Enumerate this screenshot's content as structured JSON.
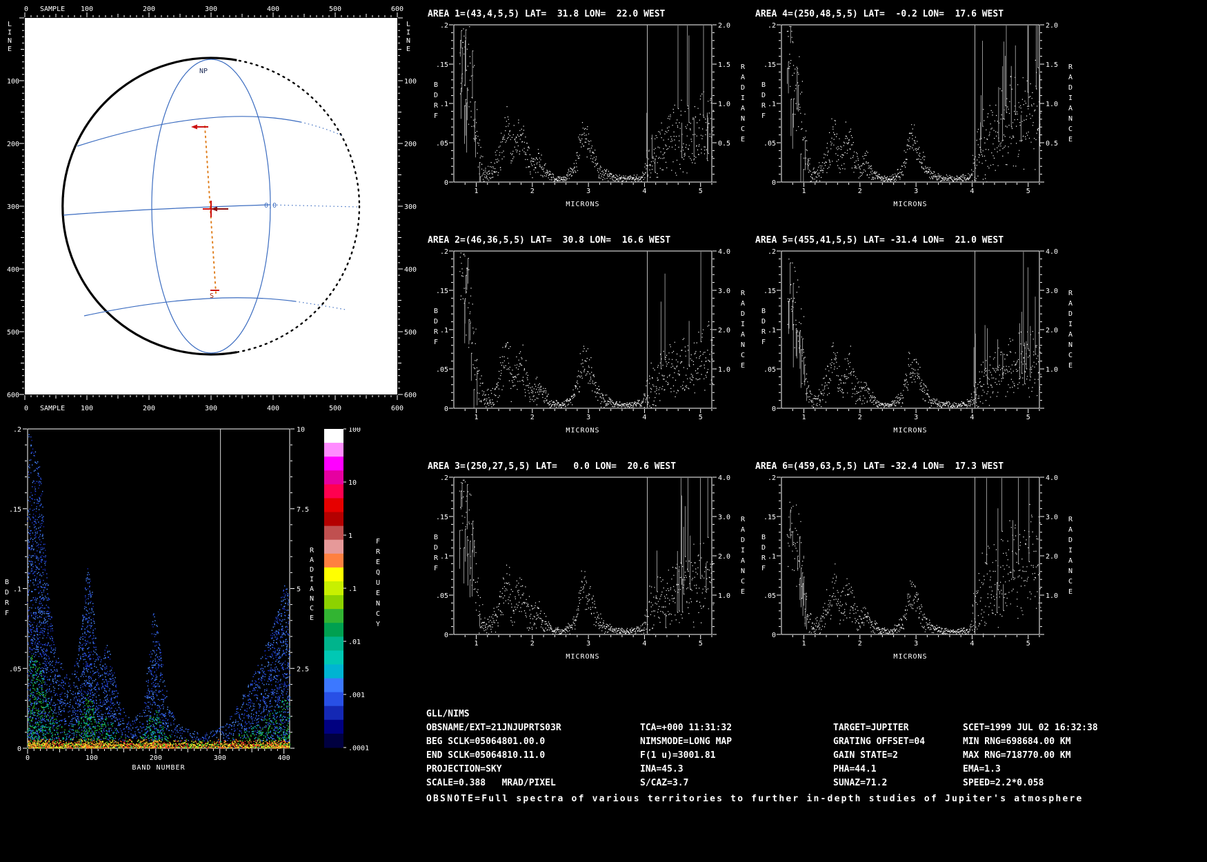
{
  "window": {
    "title": "GLL/NIMS observation display",
    "background": "#000000"
  },
  "skymap": {
    "x_axis": {
      "title": "SAMPLE",
      "min": 0,
      "max": 600,
      "majors": [
        0,
        100,
        200,
        300,
        400,
        500,
        600
      ]
    },
    "y_axis": {
      "title": "LINE",
      "min": 0,
      "max": 600,
      "majors": [
        100,
        200,
        300,
        400,
        500,
        600
      ]
    },
    "labels": {
      "north_pole": "NP",
      "origin": "0,0",
      "south_point": "S"
    },
    "colors": {
      "background": "#ffffff",
      "limb": "#000000",
      "grid": "#3b6cc0",
      "track": "#e08020",
      "marker": "#cc1111",
      "marker_dark": "#8b1010",
      "tick": "#ffffff"
    }
  },
  "chart_data": [
    {
      "name": "bdrf-band-density",
      "type": "heatmap",
      "xlabel": "BAND NUMBER",
      "ylabel": "BDRF",
      "ylabel_right": "RADIANCE",
      "x_range": [
        0,
        409
      ],
      "x_ticks": [
        0,
        100,
        200,
        300,
        400
      ],
      "y_range": [
        0,
        0.2
      ],
      "y_ticks": [
        "0",
        ".05",
        ".1",
        ".15",
        ".2"
      ],
      "radiance_range": [
        0,
        10
      ],
      "radiance_ticks": [
        "2.5",
        "5",
        "7.5",
        "10"
      ],
      "marker_line_band": 301,
      "envelope": [
        [
          0,
          0.2,
          1.3
        ],
        [
          6,
          0.195,
          1.3
        ],
        [
          12,
          0.185,
          1.2
        ],
        [
          20,
          0.175,
          1.1
        ],
        [
          28,
          0.12,
          0.9
        ],
        [
          36,
          0.085,
          0.8
        ],
        [
          45,
          0.06,
          0.7
        ],
        [
          55,
          0.05,
          0.6
        ],
        [
          65,
          0.045,
          0.6
        ],
        [
          75,
          0.055,
          0.7
        ],
        [
          85,
          0.08,
          0.9
        ],
        [
          93,
          0.115,
          1.1
        ],
        [
          100,
          0.1,
          1.0
        ],
        [
          108,
          0.06,
          0.8
        ],
        [
          116,
          0.055,
          0.8
        ],
        [
          124,
          0.068,
          0.9
        ],
        [
          132,
          0.055,
          0.8
        ],
        [
          140,
          0.035,
          0.6
        ],
        [
          152,
          0.022,
          0.5
        ],
        [
          165,
          0.018,
          0.5
        ],
        [
          178,
          0.025,
          0.6
        ],
        [
          188,
          0.055,
          0.8
        ],
        [
          196,
          0.085,
          1.0
        ],
        [
          204,
          0.075,
          0.9
        ],
        [
          212,
          0.045,
          0.7
        ],
        [
          222,
          0.025,
          0.5
        ],
        [
          235,
          0.015,
          0.45
        ],
        [
          250,
          0.012,
          0.4
        ],
        [
          265,
          0.01,
          0.4
        ],
        [
          280,
          0.01,
          0.4
        ],
        [
          295,
          0.012,
          0.45
        ],
        [
          308,
          0.016,
          0.5
        ],
        [
          320,
          0.022,
          0.55
        ],
        [
          332,
          0.03,
          0.6
        ],
        [
          344,
          0.04,
          0.65
        ],
        [
          356,
          0.05,
          0.7
        ],
        [
          368,
          0.06,
          0.75
        ],
        [
          380,
          0.075,
          0.85
        ],
        [
          392,
          0.09,
          0.95
        ],
        [
          400,
          0.105,
          1.0
        ],
        [
          408,
          0.095,
          0.9
        ]
      ],
      "legend": {
        "title": "FREQUENCY",
        "tick_labels": [
          "100",
          "10",
          "1",
          ".1",
          ".01",
          ".001",
          ".0001"
        ],
        "colors": [
          "#ffffff",
          "#ff8cff",
          "#ff00ff",
          "#e600a0",
          "#ff0050",
          "#e60000",
          "#b40000",
          "#c05050",
          "#e69999",
          "#ff8040",
          "#ffff00",
          "#c8f000",
          "#8cd200",
          "#32b432",
          "#00a050",
          "#00b48c",
          "#00c8b4",
          "#00b4d2",
          "#3c78ff",
          "#2850e6",
          "#1428b4",
          "#000080",
          "#000040"
        ],
        "dot_palette": {
          "warm": [
            "#ffff30",
            "#ff8020",
            "#ff3030",
            "#30c830"
          ],
          "mid": [
            "#30c830",
            "#00b48c",
            "#3c78ff",
            "#2850e6"
          ],
          "cool": [
            "#3c78ff",
            "#2850e6",
            "#1428b4",
            "#5090ff"
          ]
        }
      }
    },
    {
      "name": "area-spectra",
      "type": "scatter",
      "xlabel": "MICRONS",
      "ylabel": "BDRF",
      "ylabel_right": "RADIANCE",
      "x_range": [
        0.6,
        5.2
      ],
      "x_ticks": [
        1,
        2,
        3,
        4,
        5
      ],
      "bdrf_range": [
        0,
        0.2
      ],
      "bdrf_ticks": [
        "0",
        ".05",
        ".1",
        ".15",
        ".2"
      ],
      "grating_line_micron": 4.05,
      "envelope_bdrf_vs_micron": [
        [
          0.7,
          0.15,
          0.045
        ],
        [
          0.76,
          0.165,
          0.04
        ],
        [
          0.82,
          0.13,
          0.055
        ],
        [
          0.88,
          0.12,
          0.045
        ],
        [
          0.94,
          0.095,
          0.05
        ],
        [
          1.0,
          0.06,
          0.04
        ],
        [
          1.06,
          0.025,
          0.02
        ],
        [
          1.15,
          0.01,
          0.008
        ],
        [
          1.3,
          0.015,
          0.012
        ],
        [
          1.45,
          0.045,
          0.025
        ],
        [
          1.55,
          0.075,
          0.025
        ],
        [
          1.62,
          0.035,
          0.02
        ],
        [
          1.72,
          0.05,
          0.025
        ],
        [
          1.8,
          0.06,
          0.025
        ],
        [
          1.9,
          0.03,
          0.018
        ],
        [
          2.0,
          0.018,
          0.012
        ],
        [
          2.1,
          0.028,
          0.015
        ],
        [
          2.2,
          0.015,
          0.01
        ],
        [
          2.35,
          0.005,
          0.004
        ],
        [
          2.55,
          0.004,
          0.003
        ],
        [
          2.75,
          0.015,
          0.01
        ],
        [
          2.88,
          0.06,
          0.018
        ],
        [
          2.98,
          0.055,
          0.018
        ],
        [
          3.1,
          0.028,
          0.015
        ],
        [
          3.25,
          0.01,
          0.007
        ],
        [
          3.45,
          0.005,
          0.004
        ],
        [
          3.7,
          0.004,
          0.003
        ],
        [
          3.95,
          0.006,
          0.005
        ],
        [
          4.1,
          0.03,
          0.028
        ],
        [
          4.25,
          0.04,
          0.03
        ],
        [
          4.4,
          0.05,
          0.032
        ],
        [
          4.55,
          0.055,
          0.035
        ],
        [
          4.7,
          0.06,
          0.036
        ],
        [
          4.85,
          0.065,
          0.038
        ],
        [
          5.0,
          0.07,
          0.04
        ],
        [
          5.15,
          0.072,
          0.042
        ],
        [
          5.22,
          0.068,
          0.04
        ]
      ],
      "areas": [
        {
          "title": "AREA 1=(43,4,5,5) LAT=  31.8 LON=  22.0 WEST",
          "radiance_max": 2.0,
          "radiance_ticks": [
            "0.5",
            "1.0",
            "1.5",
            "2.0"
          ],
          "head_scale": 1.05,
          "mid_scale": 1.0,
          "tail_scale": 0.95,
          "seed": 101
        },
        {
          "title": "AREA 4=(250,48,5,5) LAT=  -0.2 LON=  17.6 WEST",
          "radiance_max": 2.0,
          "radiance_ticks": [
            "0.5",
            "1.0",
            "1.5",
            "2.0"
          ],
          "head_scale": 1.0,
          "mid_scale": 0.9,
          "tail_scale": 1.25,
          "seed": 104
        },
        {
          "title": "AREA 2=(46,36,5,5) LAT=  30.8 LON=  16.6 WEST",
          "radiance_max": 4.0,
          "radiance_ticks": [
            "1.0",
            "2.0",
            "3.0",
            "4.0"
          ],
          "head_scale": 1.05,
          "mid_scale": 1.0,
          "tail_scale": 0.85,
          "seed": 102
        },
        {
          "title": "AREA 5=(455,41,5,5) LAT= -31.4 LON=  21.0 WEST",
          "radiance_max": 4.0,
          "radiance_ticks": [
            "1.0",
            "2.0",
            "3.0",
            "4.0"
          ],
          "head_scale": 0.95,
          "mid_scale": 0.9,
          "tail_scale": 0.85,
          "seed": 105
        },
        {
          "title": "AREA 3=(250,27,5,5) LAT=   0.0 LON=  20.6 WEST",
          "radiance_max": 4.0,
          "radiance_ticks": [
            "1.0",
            "2.0",
            "3.0",
            "4.0"
          ],
          "head_scale": 1.1,
          "mid_scale": 1.0,
          "tail_scale": 1.0,
          "seed": 103
        },
        {
          "title": "AREA 6=(459,63,5,5) LAT= -32.4 LON=  17.3 WEST",
          "radiance_max": 4.0,
          "radiance_ticks": [
            "1.0",
            "2.0",
            "3.0",
            "4.0"
          ],
          "head_scale": 0.9,
          "mid_scale": 0.85,
          "tail_scale": 1.35,
          "seed": 106
        }
      ]
    }
  ],
  "info": {
    "header": "GLL/NIMS",
    "rows": [
      [
        "OBSNAME/EXT=21JNJUPRTS03R",
        "TCA=+000 11:31:32",
        "TARGET=JUPITER",
        "SCET=1999 JUL 02 16:32:38"
      ],
      [
        "BEG SCLK=05064801.00.0",
        "NIMSMODE=LONG MAP",
        "GRATING OFFSET=04",
        "MIN RNG=698684.00 KM"
      ],
      [
        "END SCLK=05064810.11.0",
        "F(1 u)=3001.81",
        "GAIN STATE=2",
        "MAX RNG=718770.00 KM"
      ],
      [
        "PROJECTION=SKY",
        "INA=45.3",
        "PHA=44.1",
        "EMA=1.3"
      ],
      [
        "SCALE=0.388   MRAD/PIXEL",
        "S/CAZ=3.7",
        "SUNAZ=71.2",
        "SPEED=2.2*0.058"
      ]
    ],
    "obsnote": "OBSNOTE=Full spectra of various territories to further in-depth studies of Jupiter's atmosphere"
  }
}
